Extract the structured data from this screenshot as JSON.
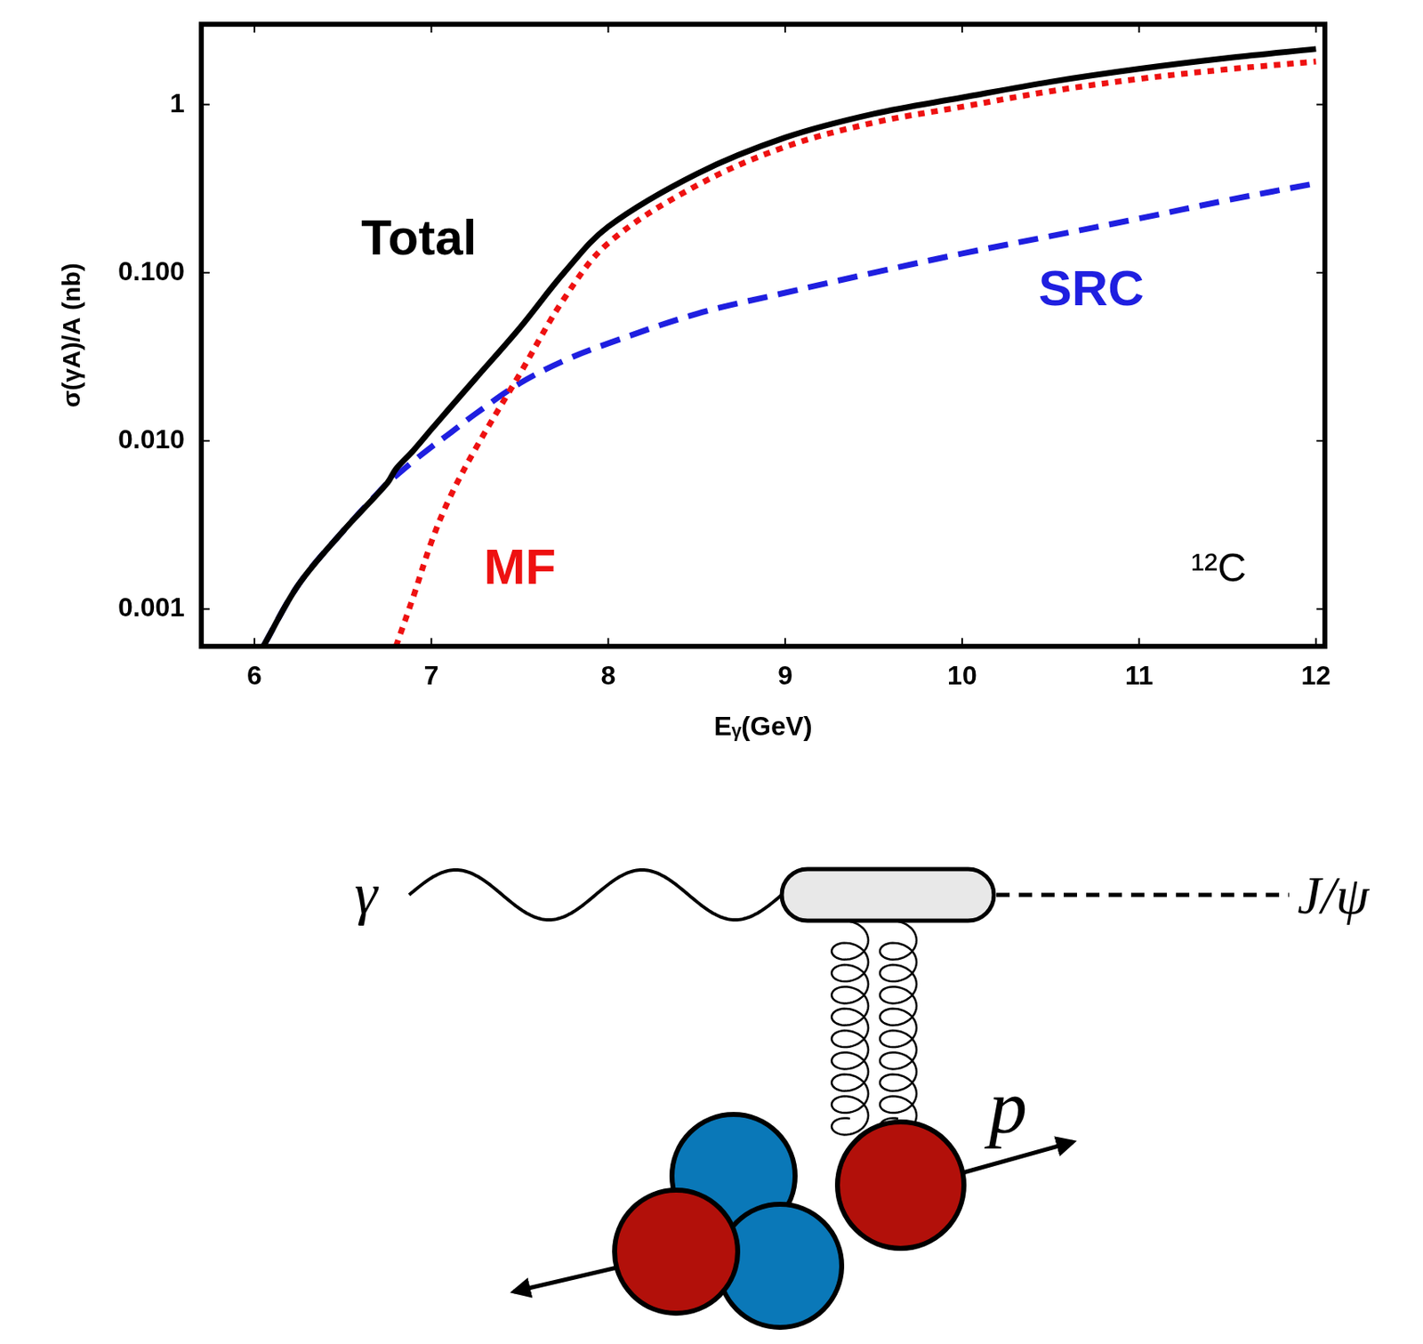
{
  "chart_data": {
    "type": "line",
    "x_label": "Eᵧ(GeV)",
    "y_label": "σ(γA)/A (nb)",
    "log": "y",
    "grid": false,
    "xlim": [
      5.7,
      12.05
    ],
    "xticks": [
      6,
      7,
      8,
      9,
      10,
      11,
      12
    ],
    "ylim": [
      0.0006,
      3
    ],
    "yticks": [
      {
        "value": 0.001,
        "label": "0.001"
      },
      {
        "value": 0.01,
        "label": "0.010"
      },
      {
        "value": 0.1,
        "label": "0.100"
      },
      1
    ],
    "x": [
      6.05,
      6.25,
      6.5,
      6.75,
      6.8,
      6.9,
      7,
      7.1,
      7.25,
      7.5,
      7.75,
      8,
      8.5,
      9,
      9.5,
      10,
      10.5,
      11,
      11.5,
      12
    ],
    "series": [
      {
        "name": "Total",
        "color": "#000000",
        "line_style": "solid",
        "values": [
          0.0006,
          0.0014,
          0.0029,
          0.0056,
          0.0068,
          0.0088,
          0.0117,
          0.0155,
          0.0235,
          0.047,
          0.1,
          0.188,
          0.387,
          0.636,
          0.88,
          1.1,
          1.365,
          1.63,
          1.89,
          2.14
        ]
      },
      {
        "name": "MF",
        "color": "#ee1111",
        "line_style": "dotted",
        "values": [
          null,
          null,
          null,
          null,
          0.0006,
          0.0012,
          0.0025,
          0.0045,
          0.009,
          0.025,
          0.07,
          0.15,
          0.33,
          0.56,
          0.78,
          0.97,
          1.2,
          1.42,
          1.62,
          1.8
        ]
      },
      {
        "name": "SRC",
        "color": "#1f1fe0",
        "line_style": "dashed",
        "values": [
          0.0006,
          0.0014,
          0.0029,
          0.0056,
          0.0062,
          0.0076,
          0.0092,
          0.011,
          0.0145,
          0.022,
          0.03,
          0.038,
          0.057,
          0.076,
          0.1,
          0.13,
          0.165,
          0.21,
          0.27,
          0.34
        ]
      }
    ],
    "annotations": [
      {
        "text": "Total",
        "x": 6.93,
        "y": 0.155,
        "color": "#000000"
      },
      {
        "text": "SRC",
        "x": 10.73,
        "y": 0.077,
        "color": "#1f1fe0"
      },
      {
        "text": "MF",
        "x": 7.5,
        "y": 0.0017,
        "color": "#ee1111"
      },
      {
        "text": "¹²C",
        "x": 11.45,
        "y": 0.0017,
        "color": "#000000"
      }
    ]
  },
  "diagram": {
    "photon_label": "γ",
    "meson_label": "J/ψ",
    "proton_label": "p"
  }
}
